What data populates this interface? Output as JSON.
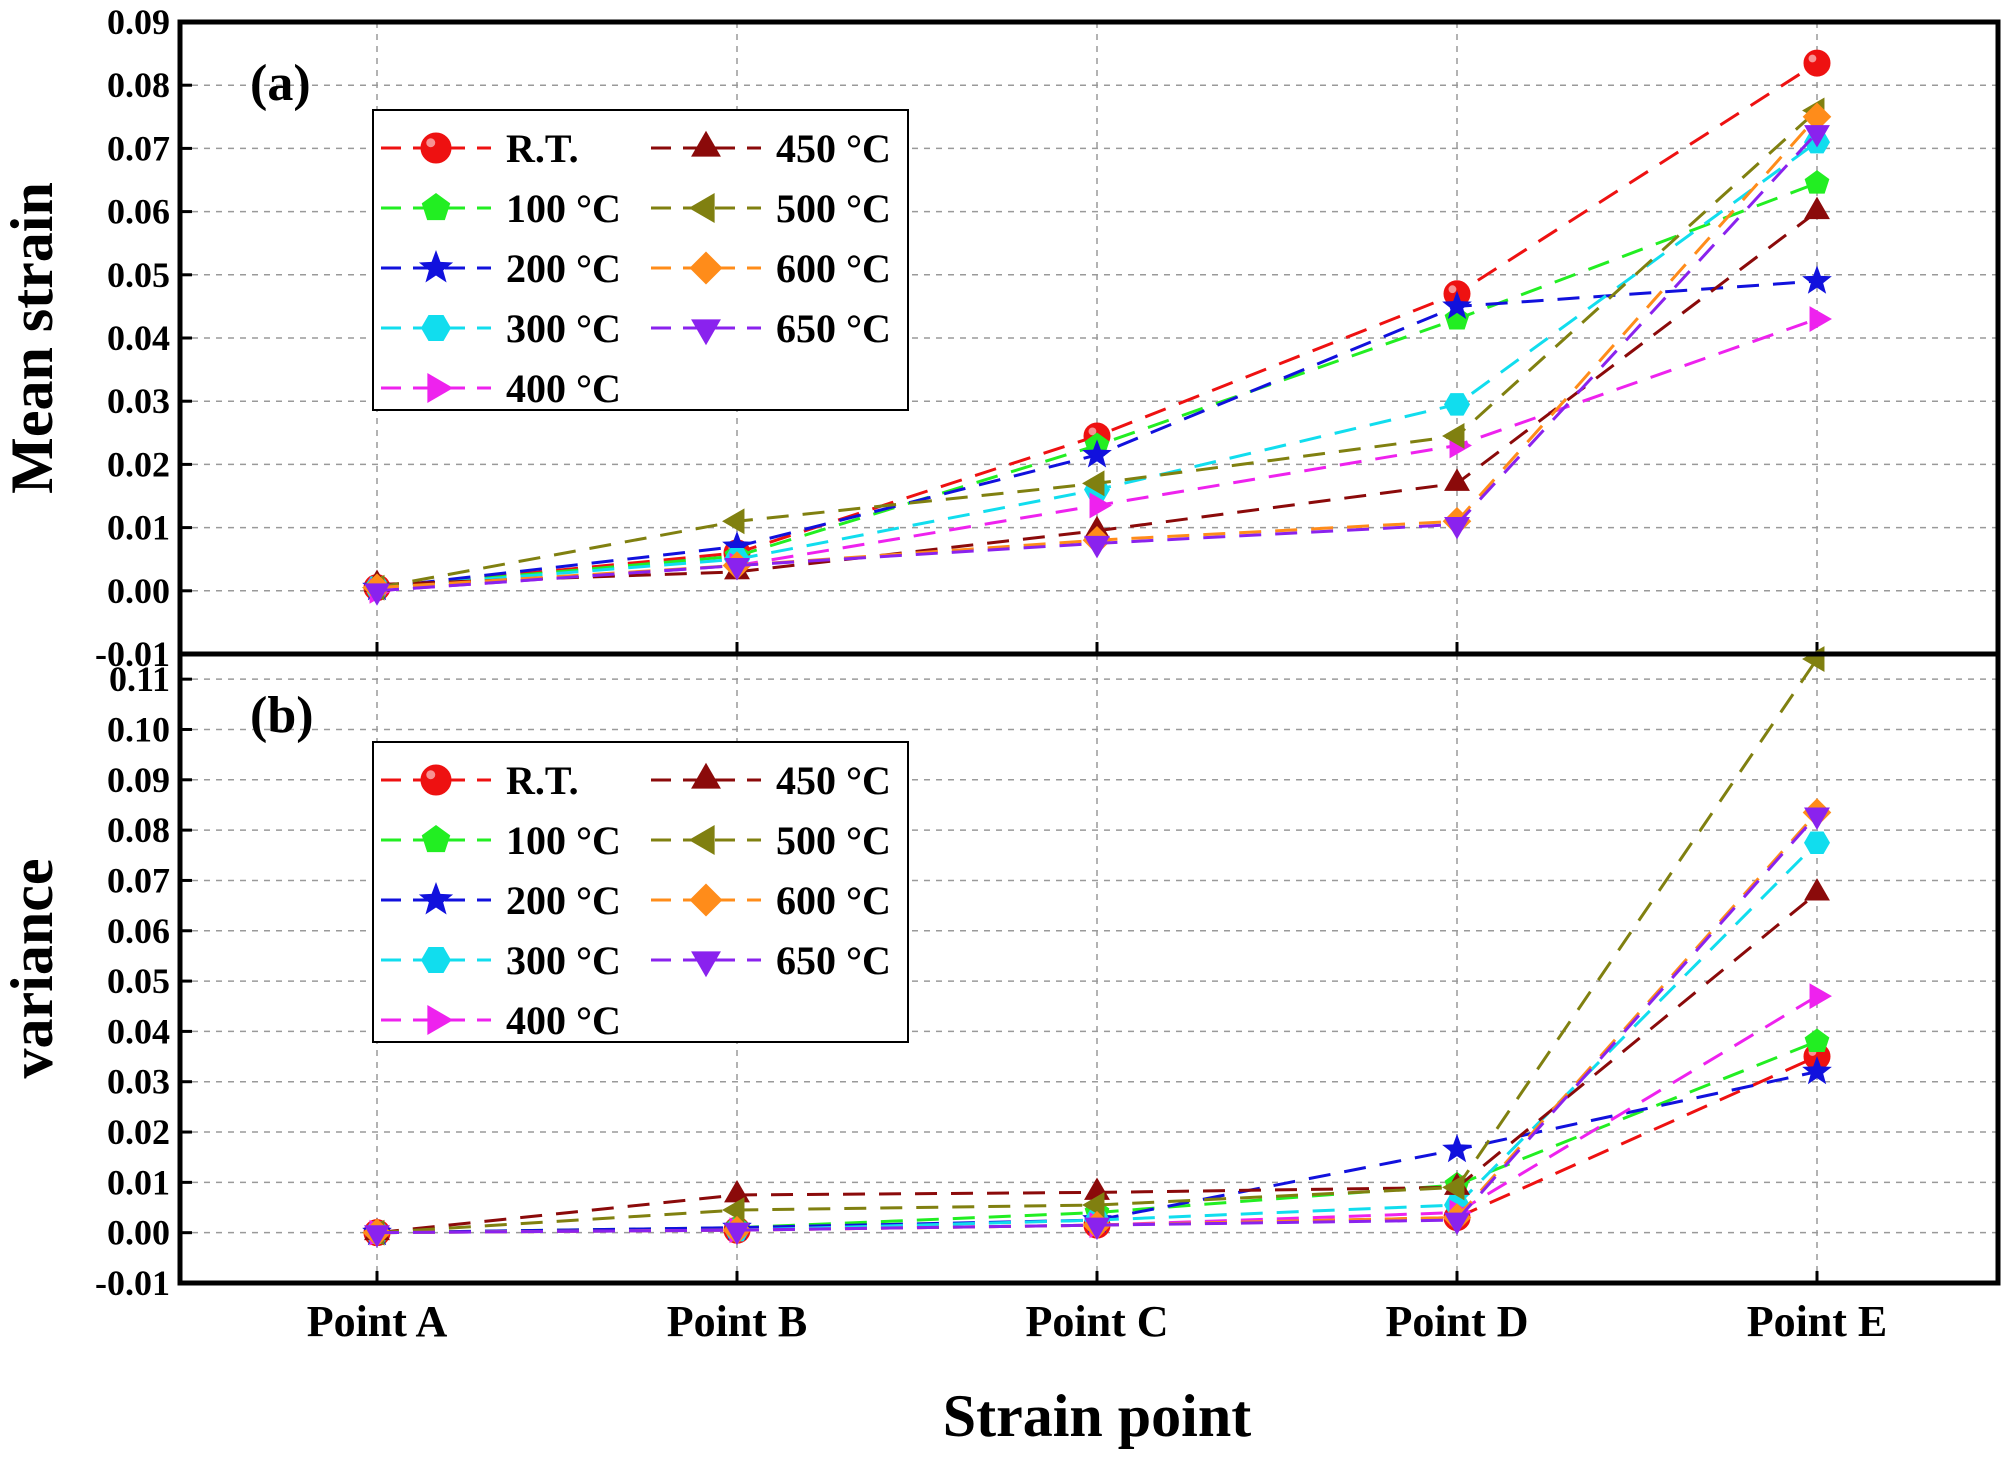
{
  "chart_data": {
    "type": "line",
    "xlabel": "Strain point",
    "categories": [
      "Point  A",
      "Point  B",
      "Point  C",
      "Point  D",
      "Point  E"
    ],
    "series_meta": [
      {
        "name": "R.T.",
        "color": "#ee1111",
        "marker": "circle"
      },
      {
        "name": "100 °C",
        "color": "#22ee22",
        "marker": "pentagon"
      },
      {
        "name": "200 °C",
        "color": "#1111dd",
        "marker": "star"
      },
      {
        "name": "300 °C",
        "color": "#11ddee",
        "marker": "hexagon"
      },
      {
        "name": "400 °C",
        "color": "#ee22ee",
        "marker": "triangle-right"
      },
      {
        "name": "450 °C",
        "color": "#8b0a0a",
        "marker": "triangle-up"
      },
      {
        "name": "500 °C",
        "color": "#808010",
        "marker": "triangle-left"
      },
      {
        "name": "600 °C",
        "color": "#ff8c1a",
        "marker": "diamond"
      },
      {
        "name": "650 °C",
        "color": "#8a22ee",
        "marker": "triangle-down"
      }
    ],
    "panels": [
      {
        "id": "a",
        "label": "(a)",
        "ylabel": "Mean strain",
        "ylim": [
          -0.01,
          0.09
        ],
        "ticks": [
          "-0.01",
          "0.00",
          "0.01",
          "0.02",
          "0.03",
          "0.04",
          "0.05",
          "0.06",
          "0.07",
          "0.08",
          "0.09"
        ],
        "series": [
          {
            "name": "R.T.",
            "values": [
              0.0005,
              0.006,
              0.0245,
              0.047,
              0.0835
            ]
          },
          {
            "name": "100 °C",
            "values": [
              0.0005,
              0.0055,
              0.023,
              0.043,
              0.0645
            ]
          },
          {
            "name": "200 °C",
            "values": [
              0.0005,
              0.007,
              0.0215,
              0.045,
              0.049
            ]
          },
          {
            "name": "300 °C",
            "values": [
              0.0005,
              0.005,
              0.016,
              0.0295,
              0.071
            ]
          },
          {
            "name": "400 °C",
            "values": [
              0.0,
              0.004,
              0.0135,
              0.023,
              0.043
            ]
          },
          {
            "name": "450 °C",
            "values": [
              0.001,
              0.003,
              0.0095,
              0.017,
              0.06
            ]
          },
          {
            "name": "500 °C",
            "values": [
              0.0005,
              0.011,
              0.017,
              0.0245,
              0.076
            ]
          },
          {
            "name": "600 °C",
            "values": [
              0.0005,
              0.004,
              0.008,
              0.011,
              0.075
            ]
          },
          {
            "name": "650 °C",
            "values": [
              0.0,
              0.004,
              0.0075,
              0.0105,
              0.0725
            ]
          }
        ]
      },
      {
        "id": "b",
        "label": "(b)",
        "ylabel": "variance",
        "ylim": [
          -0.01,
          0.115
        ],
        "ticks": [
          "-0.01",
          "0.00",
          "0.01",
          "0.02",
          "0.03",
          "0.04",
          "0.05",
          "0.06",
          "0.07",
          "0.08",
          "0.09",
          "0.10",
          "0.11"
        ],
        "series": [
          {
            "name": "R.T.",
            "values": [
              0.0,
              0.0005,
              0.0015,
              0.003,
              0.035
            ]
          },
          {
            "name": "100 °C",
            "values": [
              0.0,
              0.001,
              0.004,
              0.0095,
              0.038
            ]
          },
          {
            "name": "200 °C",
            "values": [
              0.0,
              0.001,
              0.0025,
              0.0165,
              0.032
            ]
          },
          {
            "name": "300 °C",
            "values": [
              0.0,
              0.0005,
              0.0025,
              0.0055,
              0.0775
            ]
          },
          {
            "name": "400 °C",
            "values": [
              0.0,
              0.0005,
              0.0015,
              0.004,
              0.047
            ]
          },
          {
            "name": "450 °C",
            "values": [
              0.0,
              0.0075,
              0.008,
              0.009,
              0.0675
            ]
          },
          {
            "name": "500 °C",
            "values": [
              0.0,
              0.0045,
              0.0055,
              0.009,
              0.114
            ]
          },
          {
            "name": "600 °C",
            "values": [
              0.0,
              0.0005,
              0.0015,
              0.003,
              0.0835
            ]
          },
          {
            "name": "650 °C",
            "values": [
              0.0,
              0.0005,
              0.0015,
              0.0025,
              0.083
            ]
          }
        ]
      }
    ]
  }
}
